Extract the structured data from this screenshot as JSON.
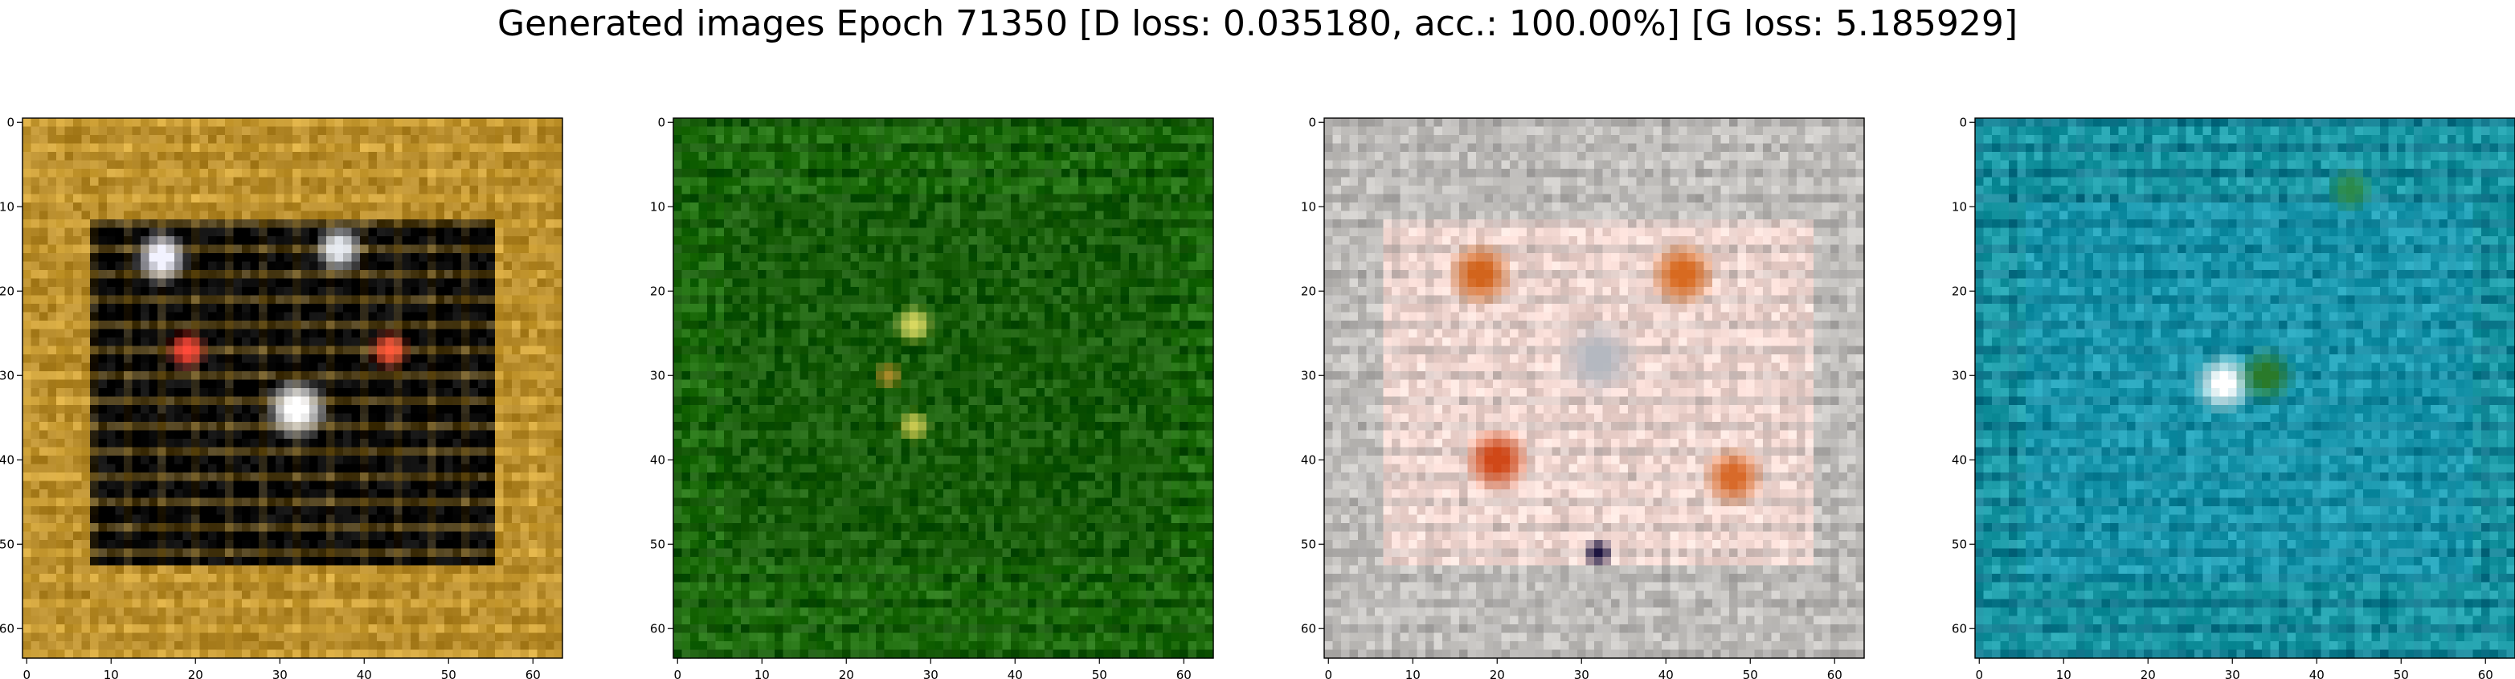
{
  "figure": {
    "suptitle": "Generated images Epoch 71350 [D loss: 0.035180, acc.: 100.00%] [G loss: 5.185929]"
  },
  "chart_data": [
    {
      "type": "heatmap",
      "image_size": 64,
      "xlim": [
        -0.5,
        63.5
      ],
      "ylim": [
        63.5,
        -0.5
      ],
      "xticks": [
        0,
        10,
        20,
        30,
        40,
        50,
        60
      ],
      "yticks": [
        0,
        10,
        20,
        30,
        40,
        50,
        60
      ],
      "content": {
        "background": "#b58a2a",
        "stripe": "#d8aa3c",
        "inner_rect": [
          8,
          12,
          55,
          52
        ],
        "inner_color": "#040404",
        "blobs": [
          {
            "x": 16,
            "y": 16,
            "r": 2.2,
            "color": "#f2f2ff"
          },
          {
            "x": 37,
            "y": 15,
            "r": 2.0,
            "color": "#e8ecf2"
          },
          {
            "x": 19,
            "y": 27,
            "r": 1.6,
            "color": "#ff4a3a"
          },
          {
            "x": 43,
            "y": 27,
            "r": 1.6,
            "color": "#ff5a3a"
          },
          {
            "x": 32,
            "y": 34,
            "r": 2.6,
            "color": "#ffffff"
          }
        ]
      }
    },
    {
      "type": "heatmap",
      "image_size": 64,
      "xlim": [
        -0.5,
        63.5
      ],
      "ylim": [
        63.5,
        -0.5
      ],
      "xticks": [
        0,
        10,
        20,
        30,
        40,
        50,
        60
      ],
      "yticks": [
        0,
        10,
        20,
        30,
        40,
        50,
        60
      ],
      "content": {
        "background": "#1f6e0e",
        "stripe": "#0f4a05",
        "inner_rect": [
          6,
          10,
          58,
          52
        ],
        "inner_color": "#195f0a",
        "blobs": [
          {
            "x": 28,
            "y": 24,
            "r": 1.6,
            "color": "#d8d860"
          },
          {
            "x": 28,
            "y": 36,
            "r": 1.4,
            "color": "#c8c850"
          },
          {
            "x": 25,
            "y": 30,
            "r": 1.2,
            "color": "#a88a2a"
          }
        ]
      }
    },
    {
      "type": "heatmap",
      "image_size": 64,
      "xlim": [
        -0.5,
        63.5
      ],
      "ylim": [
        63.5,
        -0.5
      ],
      "xticks": [
        0,
        10,
        20,
        30,
        40,
        50,
        60
      ],
      "yticks": [
        0,
        10,
        20,
        30,
        40,
        50,
        60
      ],
      "content": {
        "background": "#c4c2bf",
        "stripe": "#a9a7a6",
        "inner_rect": [
          7,
          12,
          57,
          52
        ],
        "inner_color": "#f3d8d2",
        "blobs": [
          {
            "x": 18,
            "y": 18,
            "r": 2.6,
            "color": "#d2641c"
          },
          {
            "x": 42,
            "y": 18,
            "r": 2.6,
            "color": "#d86a20"
          },
          {
            "x": 32,
            "y": 28,
            "r": 3.0,
            "color": "#b4b8c0"
          },
          {
            "x": 20,
            "y": 40,
            "r": 2.6,
            "color": "#d04818"
          },
          {
            "x": 48,
            "y": 42,
            "r": 2.4,
            "color": "#d86a2a"
          },
          {
            "x": 32,
            "y": 51,
            "r": 1.2,
            "color": "#1c1440"
          }
        ]
      }
    },
    {
      "type": "heatmap",
      "image_size": 64,
      "xlim": [
        -0.5,
        63.5
      ],
      "ylim": [
        63.5,
        -0.5
      ],
      "xticks": [
        0,
        10,
        20,
        30,
        40,
        50,
        60
      ],
      "yticks": [
        0,
        10,
        20,
        30,
        40,
        50,
        60
      ],
      "content": {
        "background": "#1b9aa6",
        "stripe": "#0e6c84",
        "inner_rect": [
          6,
          10,
          58,
          54
        ],
        "inner_color": "#1c9ab0",
        "blobs": [
          {
            "x": 29,
            "y": 31,
            "r": 2.4,
            "color": "#ffffff"
          },
          {
            "x": 34,
            "y": 30,
            "r": 2.2,
            "color": "#2a7a2a"
          },
          {
            "x": 44,
            "y": 8,
            "r": 1.8,
            "color": "#2b8a4a"
          }
        ]
      }
    }
  ]
}
